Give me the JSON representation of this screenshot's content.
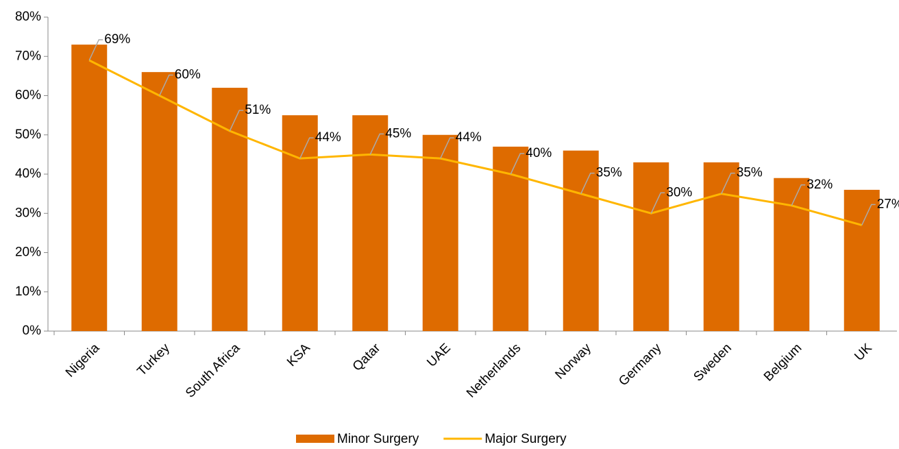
{
  "chart_data": {
    "type": "combo",
    "categories": [
      "Nigeria",
      "Turkey",
      "South Africa",
      "KSA",
      "Qatar",
      "UAE",
      "Netherlands",
      "Norway",
      "Germany",
      "Sweden",
      "Belgium",
      "UK"
    ],
    "series": [
      {
        "name": "Minor Surgery",
        "type": "bar",
        "color": "#de6b00",
        "values": [
          73,
          66,
          62,
          55,
          55,
          50,
          47,
          46,
          43,
          43,
          39,
          36
        ]
      },
      {
        "name": "Major Surgery",
        "type": "line",
        "color": "#ffb600",
        "values": [
          69,
          60,
          51,
          44,
          45,
          44,
          40,
          35,
          30,
          35,
          32,
          27
        ],
        "value_labels": [
          "69%",
          "60%",
          "51%",
          "44%",
          "45%",
          "44%",
          "40%",
          "35%",
          "30%",
          "35%",
          "32%",
          "27%"
        ]
      }
    ],
    "ylim": [
      0,
      80
    ],
    "yticks": [
      {
        "value": 0,
        "label": "0%"
      },
      {
        "value": 10,
        "label": "10%"
      },
      {
        "value": 20,
        "label": "20%"
      },
      {
        "value": 30,
        "label": "30%"
      },
      {
        "value": 40,
        "label": "40%"
      },
      {
        "value": 50,
        "label": "50%"
      },
      {
        "value": 60,
        "label": "60%"
      },
      {
        "value": 70,
        "label": "70%"
      },
      {
        "value": 80,
        "label": "80%"
      }
    ],
    "grid": false,
    "legend": "bottom"
  }
}
